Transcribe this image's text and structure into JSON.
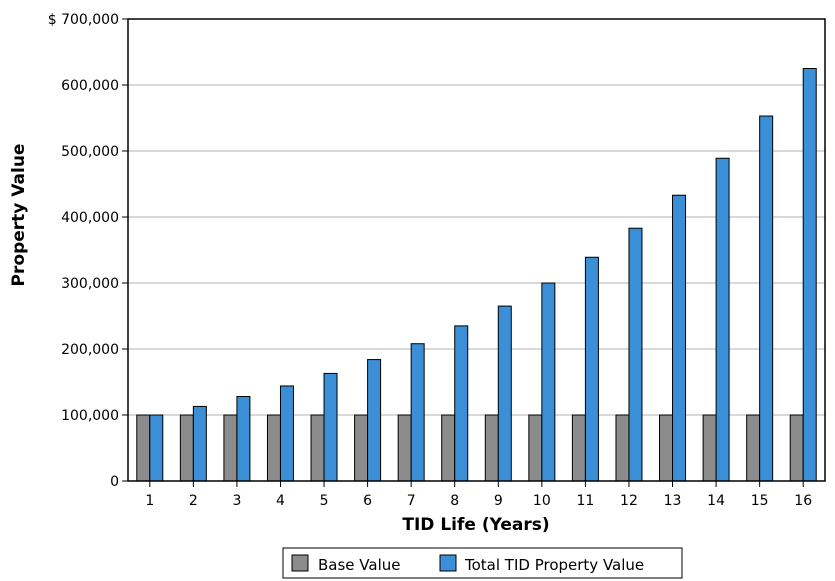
{
  "chart_data": {
    "type": "bar",
    "categories": [
      "1",
      "2",
      "3",
      "4",
      "5",
      "6",
      "7",
      "8",
      "9",
      "10",
      "11",
      "12",
      "13",
      "14",
      "15",
      "16"
    ],
    "series": [
      {
        "name": "Base Value",
        "color": "#8c8c8c",
        "values": [
          100000,
          100000,
          100000,
          100000,
          100000,
          100000,
          100000,
          100000,
          100000,
          100000,
          100000,
          100000,
          100000,
          100000,
          100000,
          100000
        ]
      },
      {
        "name": "Total TID Property Value",
        "color": "#3a8fd6",
        "values": [
          100000,
          113000,
          128000,
          144000,
          163000,
          184000,
          208000,
          235000,
          265000,
          300000,
          339000,
          383000,
          433000,
          489000,
          553000,
          625000
        ]
      }
    ],
    "xlabel": "TID Life (Years)",
    "ylabel": "Property Value",
    "ylim": [
      0,
      700000
    ],
    "yticks": [
      0,
      100000,
      200000,
      300000,
      400000,
      500000,
      600000,
      700000
    ],
    "ytick_labels": [
      "0",
      "100,000",
      "200,000",
      "300,000",
      "400,000",
      "500,000",
      "600,000",
      "$ 700,000"
    ],
    "grid": true,
    "legend_position": "bottom"
  }
}
